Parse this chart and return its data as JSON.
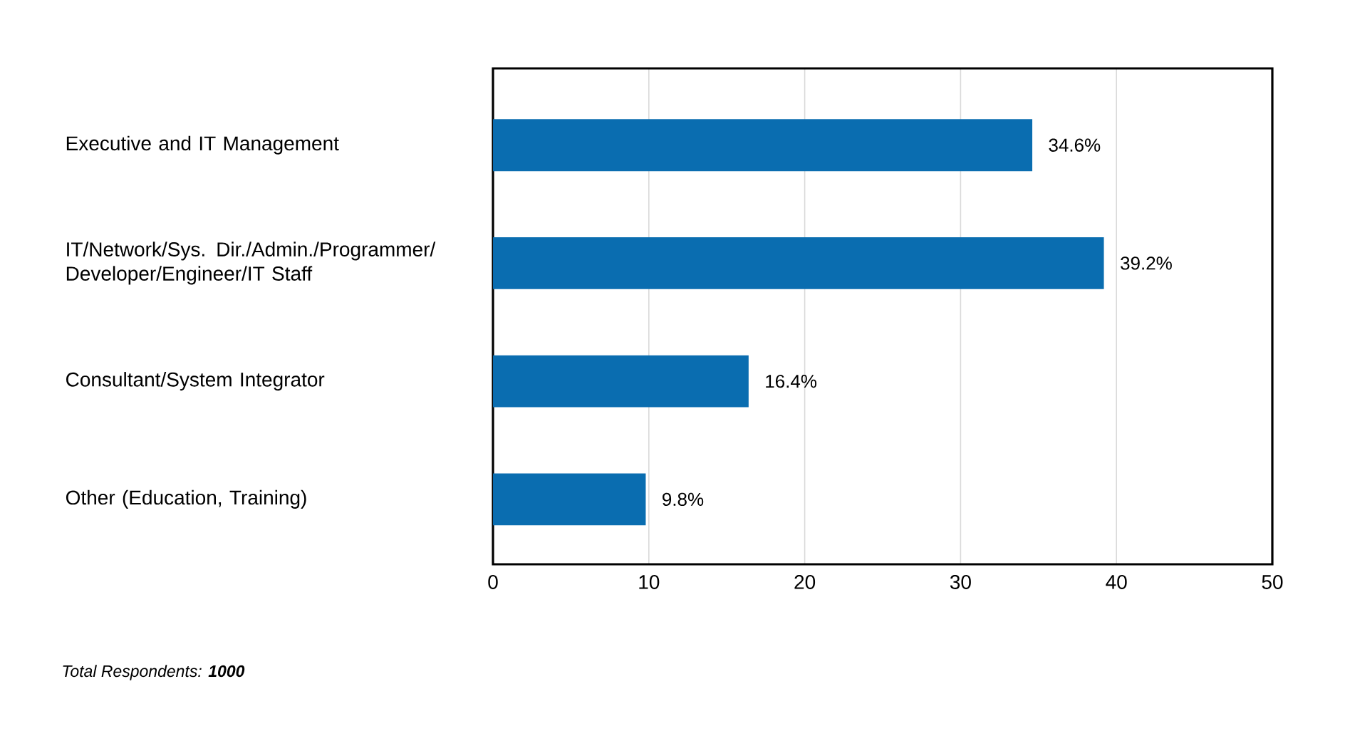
{
  "chart_data": {
    "type": "bar",
    "orientation": "horizontal",
    "categories": [
      "Executive and IT Management",
      "IT/Network/Sys. Dir./Admin./Programmer/Developer/Engineer/IT Staff",
      "Consultant/System Integrator",
      "Other (Education, Training)"
    ],
    "values": [
      34.6,
      39.2,
      16.4,
      9.8
    ],
    "value_labels": [
      "34.6%",
      "39.2%",
      "16.4%",
      "9.8%"
    ],
    "color": "#0a6db0",
    "xlim": [
      0,
      50
    ],
    "xticks": [
      0,
      10,
      20,
      30,
      40,
      50
    ],
    "grid": "x",
    "annotations": [
      "Total Respondents: **1000**"
    ]
  }
}
